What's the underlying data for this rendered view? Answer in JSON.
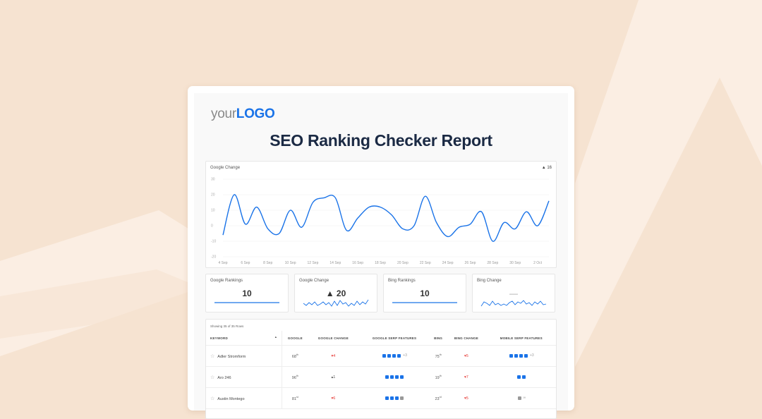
{
  "logo": {
    "prefix": "your",
    "brand": "LOGO"
  },
  "report_title": "SEO Ranking Checker Report",
  "main_chart": {
    "label": "Google Change",
    "delta": "▲ 16"
  },
  "chart_data": {
    "type": "line",
    "title": "Google Change",
    "xlabel": "",
    "ylabel": "",
    "ylim": [
      -20,
      30
    ],
    "yticks": [
      30,
      20,
      10,
      0,
      -10,
      -20
    ],
    "x_tick_labels": [
      "4 Sep",
      "6 Sep",
      "8 Sep",
      "10 Sep",
      "12 Sep",
      "14 Sep",
      "16 Sep",
      "18 Sep",
      "20 Sep",
      "22 Sep",
      "24 Sep",
      "26 Sep",
      "28 Sep",
      "30 Sep",
      "2 Oct"
    ],
    "grid": true,
    "x": [
      "4 Sep",
      "5 Sep",
      "6 Sep",
      "7 Sep",
      "8 Sep",
      "9 Sep",
      "10 Sep",
      "11 Sep",
      "12 Sep",
      "13 Sep",
      "14 Sep",
      "15 Sep",
      "16 Sep",
      "17 Sep",
      "18 Sep",
      "19 Sep",
      "20 Sep",
      "21 Sep",
      "22 Sep",
      "23 Sep",
      "24 Sep",
      "25 Sep",
      "26 Sep",
      "27 Sep",
      "28 Sep",
      "29 Sep",
      "30 Sep",
      "1 Oct",
      "2 Oct",
      "3 Oct"
    ],
    "series": [
      {
        "name": "Google Change",
        "color": "#1a73e8",
        "values": [
          -6,
          20,
          1,
          12,
          -2,
          -5,
          10,
          -1,
          15,
          18,
          18,
          -3,
          5,
          12,
          12,
          7,
          -2,
          0,
          19,
          2,
          -7,
          -1,
          1,
          9,
          -10,
          2,
          -2,
          9,
          0,
          16
        ]
      }
    ]
  },
  "stats": [
    {
      "label": "Google Rankings",
      "value": "10",
      "spark": "flat"
    },
    {
      "label": "Google Change",
      "value": "▲ 20",
      "spark": "wave"
    },
    {
      "label": "Bing Rankings",
      "value": "10",
      "spark": "flat"
    },
    {
      "label": "Bing Change",
      "value": "—",
      "spark": "wave"
    }
  ],
  "table": {
    "caption": "Showing 35 of 35 Rows",
    "columns": [
      "KEYWORD",
      "GOOGLE",
      "GOOGLE CHANGE",
      "GOOGLE SERP FEATURES",
      "BING",
      "BING CHANGE",
      "MOBILE SERP FEATURES"
    ],
    "sort_indicator": "▲",
    "rows": [
      {
        "keyword": "Adler Stromform",
        "google": "68",
        "google_suffix": "th",
        "google_change": "▾4",
        "google_serp_more": "+3",
        "bing": "75",
        "bing_suffix": "th",
        "bing_change": "▾5",
        "mobile_serp_more": "+3"
      },
      {
        "keyword": "Aro 246",
        "google": "96",
        "google_suffix": "th",
        "google_change": "▴1",
        "google_serp_more": "",
        "bing": "19",
        "bing_suffix": "th",
        "bing_change": "▾7",
        "mobile_serp_more": ""
      },
      {
        "keyword": "Austin Montego",
        "google": "81",
        "google_suffix": "st",
        "google_change": "▾6",
        "google_serp_more": "",
        "bing": "23",
        "bing_suffix": "rd",
        "bing_change": "▾5",
        "mobile_serp_more": ""
      }
    ]
  },
  "colors": {
    "accent": "#1a73e8",
    "negative": "#e53935",
    "background": "#f6e3d1",
    "title": "#1b2a44"
  }
}
